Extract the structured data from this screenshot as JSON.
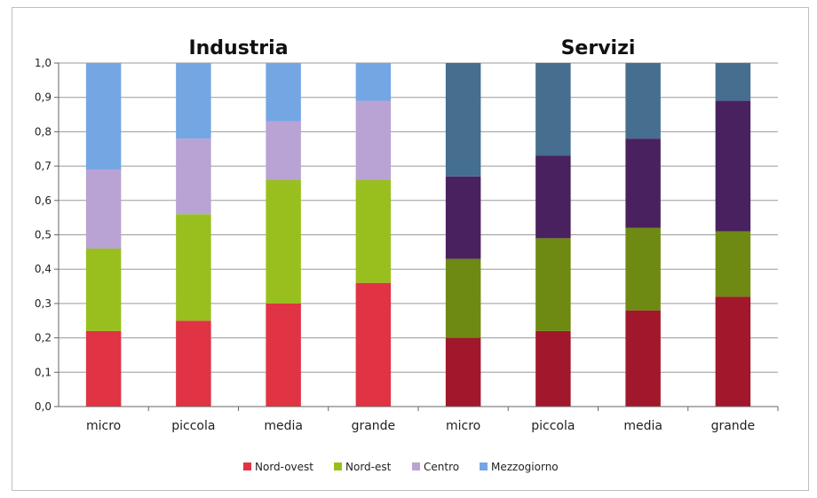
{
  "chart_data": {
    "type": "bar",
    "stacked": true,
    "groups": [
      {
        "title": "Industria",
        "categories": [
          "micro",
          "piccola",
          "media",
          "grande"
        ]
      },
      {
        "title": "Servizi",
        "categories": [
          "micro",
          "piccola",
          "media",
          "grande"
        ]
      }
    ],
    "ylim": [
      0,
      1
    ],
    "yticks": [
      "0,0",
      "0,1",
      "0,2",
      "0,3",
      "0,4",
      "0,5",
      "0,6",
      "0,7",
      "0,8",
      "0,9",
      "1,0"
    ],
    "grid": true,
    "legend_position": "bottom",
    "legend": [
      "Nord-ovest",
      "Nord-est",
      "Centro",
      "Mezzogiorno"
    ],
    "series": [
      {
        "name": "Nord-ovest",
        "values": [
          0.22,
          0.25,
          0.3,
          0.36,
          0.2,
          0.22,
          0.28,
          0.32
        ]
      },
      {
        "name": "Nord-est",
        "values": [
          0.24,
          0.31,
          0.36,
          0.3,
          0.23,
          0.27,
          0.24,
          0.19
        ]
      },
      {
        "name": "Centro",
        "values": [
          0.23,
          0.22,
          0.17,
          0.23,
          0.24,
          0.24,
          0.26,
          0.38
        ]
      },
      {
        "name": "Mezzogiorno",
        "values": [
          0.31,
          0.22,
          0.17,
          0.11,
          0.33,
          0.27,
          0.22,
          0.11
        ]
      }
    ],
    "colors": {
      "Industria": [
        "#e03344",
        "#99bf1e",
        "#b9a2d4",
        "#74a6e3"
      ],
      "Servizi": [
        "#a1172b",
        "#6e8a12",
        "#4a215f",
        "#456e8f"
      ]
    }
  }
}
